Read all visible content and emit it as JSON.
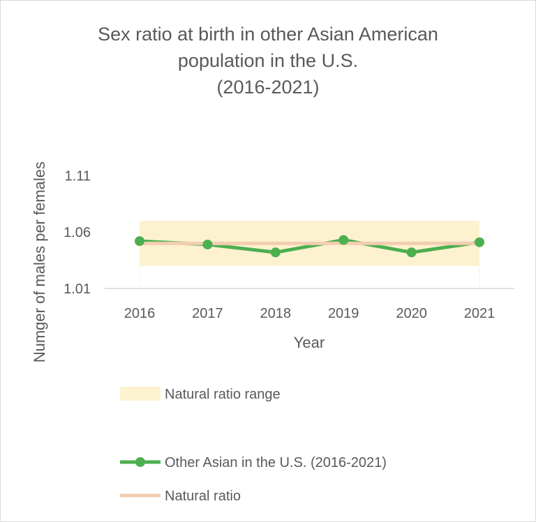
{
  "chart_data": {
    "type": "line",
    "title_lines": [
      "Sex ratio at birth in other Asian American",
      "population in the U.S.",
      "(2016-2021)"
    ],
    "xlabel": "Year",
    "ylabel": "Numger of males per females",
    "categories": [
      "2016",
      "2017",
      "2018",
      "2019",
      "2020",
      "2021"
    ],
    "yticks": [
      "1.11",
      "1.06",
      "1.01"
    ],
    "ytick_values": [
      1.11,
      1.06,
      1.01
    ],
    "ylim": [
      1.01,
      1.11
    ],
    "grid": false,
    "legend_position": "bottom",
    "band": {
      "name": "Natural ratio range",
      "low": 1.03,
      "high": 1.07,
      "color": "#fdf2d0"
    },
    "series": [
      {
        "name": "Other Asian in the U.S. (2016-2021)",
        "values": [
          1.052,
          1.049,
          1.042,
          1.053,
          1.042,
          1.051
        ],
        "color": "#4caf50"
      },
      {
        "name": "Natural ratio",
        "values": [
          1.05,
          1.05,
          1.05,
          1.05,
          1.05,
          1.05
        ],
        "color": "#f3cdb0"
      }
    ]
  }
}
